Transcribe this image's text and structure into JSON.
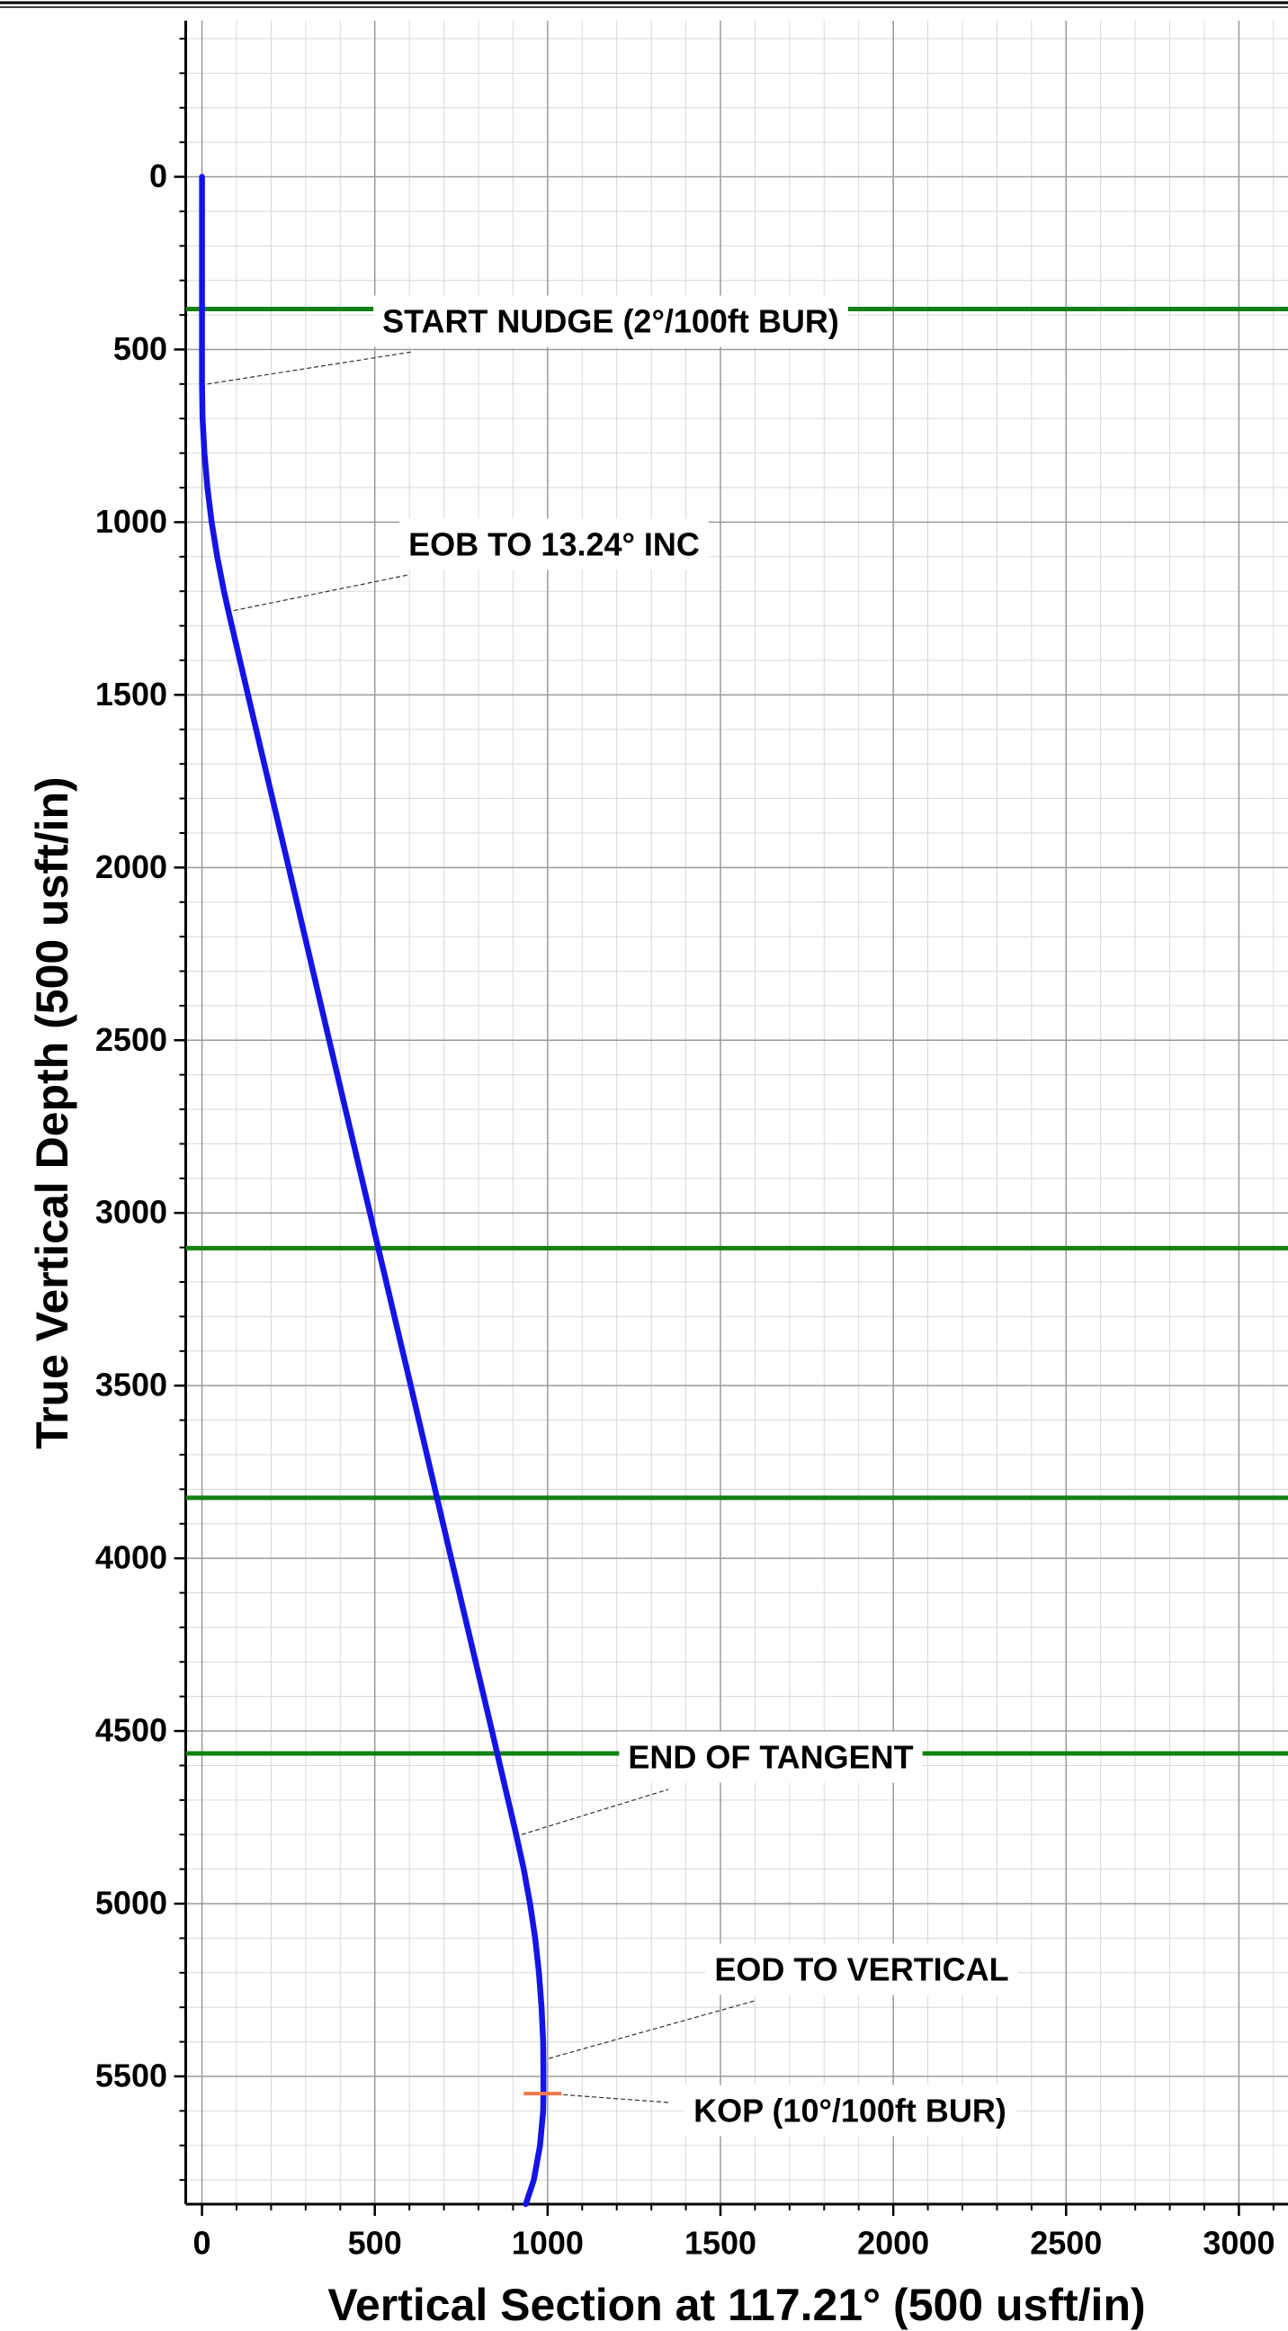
{
  "chart_data": {
    "type": "line",
    "x_label": "Vertical Section at 117.21° (500 usft/in)",
    "y_label": "True Vertical Depth (500 usft/in)",
    "xlim": [
      -47,
      3142
    ],
    "ylim": [
      -452,
      5870
    ],
    "y_inverted": true,
    "xticks": [
      0,
      500,
      1000,
      1500,
      2000,
      2500,
      3000
    ],
    "yticks": [
      0,
      500,
      1000,
      1500,
      2000,
      2500,
      3000,
      3500,
      4000,
      4500,
      5000,
      5500
    ],
    "minor_step": 100,
    "grid": true,
    "series": [
      {
        "color": "#1414e6",
        "x": [
          0,
          0,
          0,
          0,
          1.7,
          7,
          15.8,
          28,
          44,
          63.5,
          76,
          133,
          251,
          368,
          486,
          604,
          721,
          839,
          909,
          931,
          949,
          964,
          975,
          982.5,
          987,
          988,
          988,
          987,
          978,
          960,
          937
        ],
        "values": [
          0,
          200,
          400,
          600,
          700,
          800,
          900,
          1000,
          1100,
          1200,
          1256,
          1500,
          2000,
          2500,
          3000,
          3500,
          4000,
          4500,
          4800,
          4900,
          5000,
          5100,
          5200,
          5300,
          5400,
          5480,
          5550,
          5600,
          5700,
          5800,
          5870
        ]
      }
    ],
    "formation_lines": {
      "color": "#128012",
      "values": [
        383,
        3102,
        3825,
        4565
      ]
    },
    "annotations": [
      {
        "label": "START NUDGE (2°/100ft BUR)",
        "x": 0,
        "y": 600
      },
      {
        "label": "EOB TO 13.24° INC",
        "x": 76,
        "y": 1256
      },
      {
        "label": "END OF TANGENT",
        "x": 909,
        "y": 4800
      },
      {
        "label": "EOD TO VERTICAL",
        "x": 988,
        "y": 5448
      },
      {
        "label": "KOP (10°/100ft BUR)",
        "x": 988,
        "y": 5550,
        "marker_color": "#f07848"
      }
    ]
  }
}
